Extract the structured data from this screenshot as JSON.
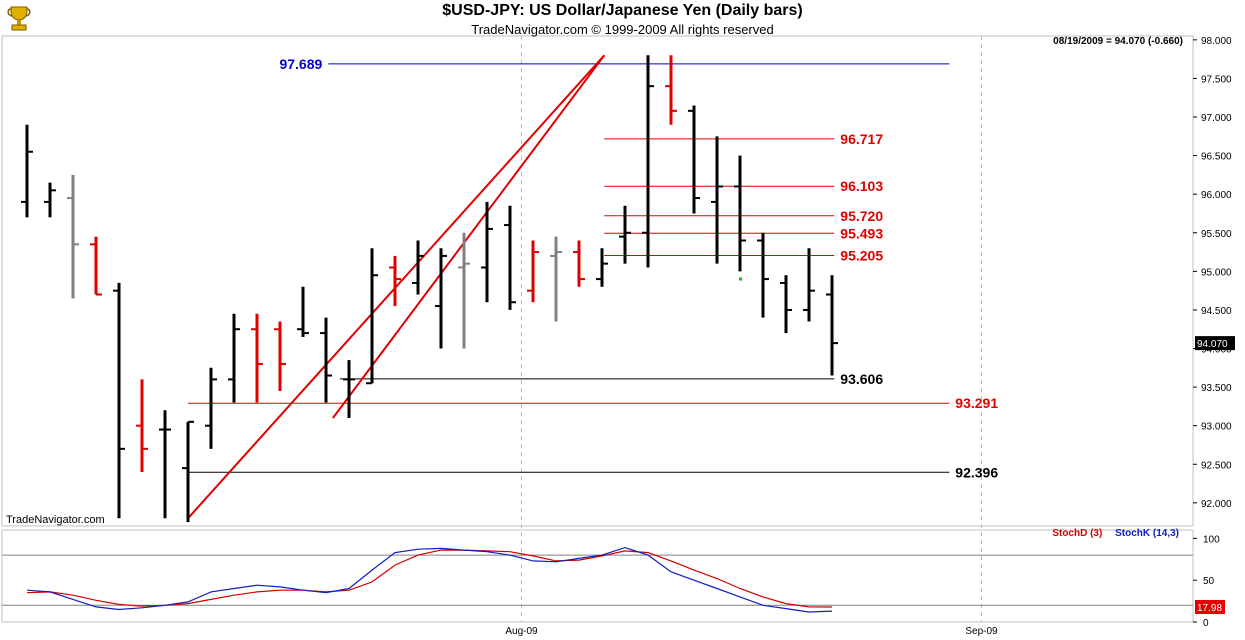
{
  "header": {
    "title": "$USD-JPY:  US Dollar/Japanese Yen  (Daily bars)",
    "subtitle": "TradeNavigator.com © 1999-2009 All rights reserved",
    "last_info": "08/19/2009 = 94.070 (-0.660)",
    "watermark": "TradeNavigator.com"
  },
  "colors": {
    "up_bar": "#000000",
    "down_bar": "#e00000",
    "neutral_bar": "#808080",
    "trend_line": "#e00000",
    "fib_red": "#e00000",
    "fib_black": "#000000",
    "fib_blue": "#0000cc",
    "stoch_d": "#d40000",
    "stoch_k": "#1020c0"
  },
  "chart_data": [
    {
      "type": "ohlc",
      "title": "$USD-JPY:  US Dollar/Japanese Yen  (Daily bars)",
      "ylim": [
        91.7,
        98.05
      ],
      "y_ticks": [
        "92.000",
        "92.500",
        "93.000",
        "93.500",
        "94.000",
        "94.500",
        "95.000",
        "95.500",
        "96.000",
        "96.500",
        "97.000",
        "97.500",
        "98.000"
      ],
      "x_tick_labels": [
        {
          "label": "Aug-09",
          "index": 21.5
        },
        {
          "label": "Sep-09",
          "index": 41.5
        }
      ],
      "last_price_label": "94.070",
      "bars": [
        {
          "o": 95.9,
          "h": 96.9,
          "l": 95.7,
          "c": 96.55,
          "color": "up"
        },
        {
          "o": 95.9,
          "h": 96.15,
          "l": 95.7,
          "c": 96.05,
          "color": "up"
        },
        {
          "o": 95.95,
          "h": 96.25,
          "l": 94.65,
          "c": 95.35,
          "color": "neutral"
        },
        {
          "o": 95.35,
          "h": 95.45,
          "l": 94.7,
          "c": 94.7,
          "color": "down"
        },
        {
          "o": 94.75,
          "h": 94.85,
          "l": 91.8,
          "c": 92.7,
          "color": "up"
        },
        {
          "o": 93.0,
          "h": 93.6,
          "l": 92.4,
          "c": 92.7,
          "color": "down"
        },
        {
          "o": 92.95,
          "h": 93.2,
          "l": 91.8,
          "c": 92.95,
          "color": "up"
        },
        {
          "o": 92.45,
          "h": 93.05,
          "l": 91.75,
          "c": 93.05,
          "color": "up"
        },
        {
          "o": 93.0,
          "h": 93.75,
          "l": 92.7,
          "c": 93.6,
          "color": "up"
        },
        {
          "o": 93.6,
          "h": 94.45,
          "l": 93.3,
          "c": 94.25,
          "color": "up"
        },
        {
          "o": 94.25,
          "h": 94.45,
          "l": 93.3,
          "c": 93.8,
          "color": "down"
        },
        {
          "o": 94.25,
          "h": 94.35,
          "l": 93.45,
          "c": 93.8,
          "color": "down"
        },
        {
          "o": 94.25,
          "h": 94.8,
          "l": 94.15,
          "c": 94.2,
          "color": "up"
        },
        {
          "o": 94.2,
          "h": 94.4,
          "l": 93.3,
          "c": 93.65,
          "color": "up"
        },
        {
          "o": 93.6,
          "h": 93.85,
          "l": 93.1,
          "c": 93.6,
          "color": "up"
        },
        {
          "o": 93.55,
          "h": 95.3,
          "l": 93.55,
          "c": 94.95,
          "color": "up"
        },
        {
          "o": 95.05,
          "h": 95.2,
          "l": 94.55,
          "c": 94.9,
          "color": "down"
        },
        {
          "o": 94.85,
          "h": 95.4,
          "l": 94.7,
          "c": 95.2,
          "color": "up"
        },
        {
          "o": 94.55,
          "h": 95.3,
          "l": 94.0,
          "c": 95.2,
          "color": "up"
        },
        {
          "o": 95.05,
          "h": 95.5,
          "l": 94.0,
          "c": 95.1,
          "color": "neutral"
        },
        {
          "o": 95.05,
          "h": 95.9,
          "l": 94.6,
          "c": 95.55,
          "color": "up"
        },
        {
          "o": 95.6,
          "h": 95.85,
          "l": 94.5,
          "c": 94.6,
          "color": "up"
        },
        {
          "o": 94.75,
          "h": 95.4,
          "l": 94.6,
          "c": 95.25,
          "color": "down"
        },
        {
          "o": 95.2,
          "h": 95.45,
          "l": 94.35,
          "c": 95.25,
          "color": "neutral"
        },
        {
          "o": 95.25,
          "h": 95.4,
          "l": 94.8,
          "c": 94.9,
          "color": "down"
        },
        {
          "o": 94.9,
          "h": 95.3,
          "l": 94.8,
          "c": 95.1,
          "color": "up"
        },
        {
          "o": 95.45,
          "h": 95.85,
          "l": 95.1,
          "c": 95.5,
          "color": "up"
        },
        {
          "o": 95.5,
          "h": 97.8,
          "l": 95.05,
          "c": 97.4,
          "color": "up"
        },
        {
          "o": 97.4,
          "h": 97.8,
          "l": 96.9,
          "c": 97.08,
          "color": "down"
        },
        {
          "o": 97.08,
          "h": 97.15,
          "l": 95.75,
          "c": 95.95,
          "color": "up"
        },
        {
          "o": 95.9,
          "h": 96.75,
          "l": 95.1,
          "c": 96.1,
          "color": "up"
        },
        {
          "o": 96.1,
          "h": 96.5,
          "l": 95.0,
          "c": 95.4,
          "color": "up"
        },
        {
          "o": 95.4,
          "h": 95.5,
          "l": 94.4,
          "c": 94.9,
          "color": "up"
        },
        {
          "o": 94.85,
          "h": 94.95,
          "l": 94.2,
          "c": 94.5,
          "color": "up"
        },
        {
          "o": 94.5,
          "h": 95.3,
          "l": 94.35,
          "c": 94.75,
          "color": "up"
        },
        {
          "o": 94.7,
          "h": 94.95,
          "l": 93.65,
          "c": 94.07,
          "color": "up"
        }
      ],
      "trend_lines": [
        [
          [
            7,
            91.8
          ],
          [
            25.1,
            97.8
          ]
        ],
        [
          [
            25.1,
            97.8
          ],
          [
            13.3,
            93.1
          ]
        ]
      ],
      "levels": [
        {
          "label": "97.689",
          "value": 97.689,
          "color": "blue",
          "from": 13.1,
          "to": 40.1,
          "label_side": "left"
        },
        {
          "label": "96.717",
          "value": 96.717,
          "color": "red",
          "from": 25.1,
          "to": 35.1,
          "label_side": "right"
        },
        {
          "label": "96.103",
          "value": 96.103,
          "color": "red",
          "from": 25.1,
          "to": 35.1,
          "label_side": "right"
        },
        {
          "label": "95.720",
          "value": 95.72,
          "color": "red",
          "from": 25.1,
          "to": 35.1,
          "label_side": "right"
        },
        {
          "label": "95.493",
          "value": 95.493,
          "color": "red",
          "from": 25.1,
          "to": 35.1,
          "label_side": "right"
        },
        {
          "label": "95.205",
          "value": 95.205,
          "color": "red",
          "from": 25.1,
          "to": 35.1,
          "label_side": "right"
        },
        {
          "label": "93.606",
          "value": 93.606,
          "color": "black",
          "from": 13.6,
          "to": 35.1,
          "label_side": "right"
        },
        {
          "label": "93.291",
          "value": 93.291,
          "color": "red",
          "from": 7,
          "to": 40.1,
          "label_side": "right"
        },
        {
          "label": "92.396",
          "value": 92.396,
          "color": "black",
          "from": 7,
          "to": 40.1,
          "label_side": "right"
        }
      ]
    },
    {
      "type": "line",
      "title": "",
      "ylim": [
        0,
        110
      ],
      "y_ticks": [
        "0",
        "50",
        "100"
      ],
      "reference_lines": [
        20,
        80
      ],
      "legend": [
        "StochD (3)",
        "StochK (14,3)"
      ],
      "last_value_label": "17.98",
      "series": [
        {
          "name": "StochD (3)",
          "color": "#d40000",
          "values": [
            35,
            36,
            32,
            26,
            21,
            19,
            20,
            22,
            27,
            32,
            36,
            38,
            38,
            36,
            38,
            48,
            68,
            80,
            86,
            86,
            85,
            84,
            79,
            73,
            74,
            79,
            85,
            83,
            73,
            62,
            52,
            40,
            30,
            22,
            18,
            17.98
          ]
        },
        {
          "name": "StochK (14,3)",
          "color": "#1020c0",
          "values": [
            38,
            36,
            27,
            18,
            15,
            17,
            20,
            24,
            36,
            40,
            44,
            42,
            38,
            35,
            40,
            62,
            83,
            87,
            88,
            86,
            84,
            80,
            73,
            72,
            76,
            80,
            89,
            80,
            60,
            50,
            40,
            30,
            20,
            16,
            12,
            13
          ]
        }
      ]
    }
  ]
}
